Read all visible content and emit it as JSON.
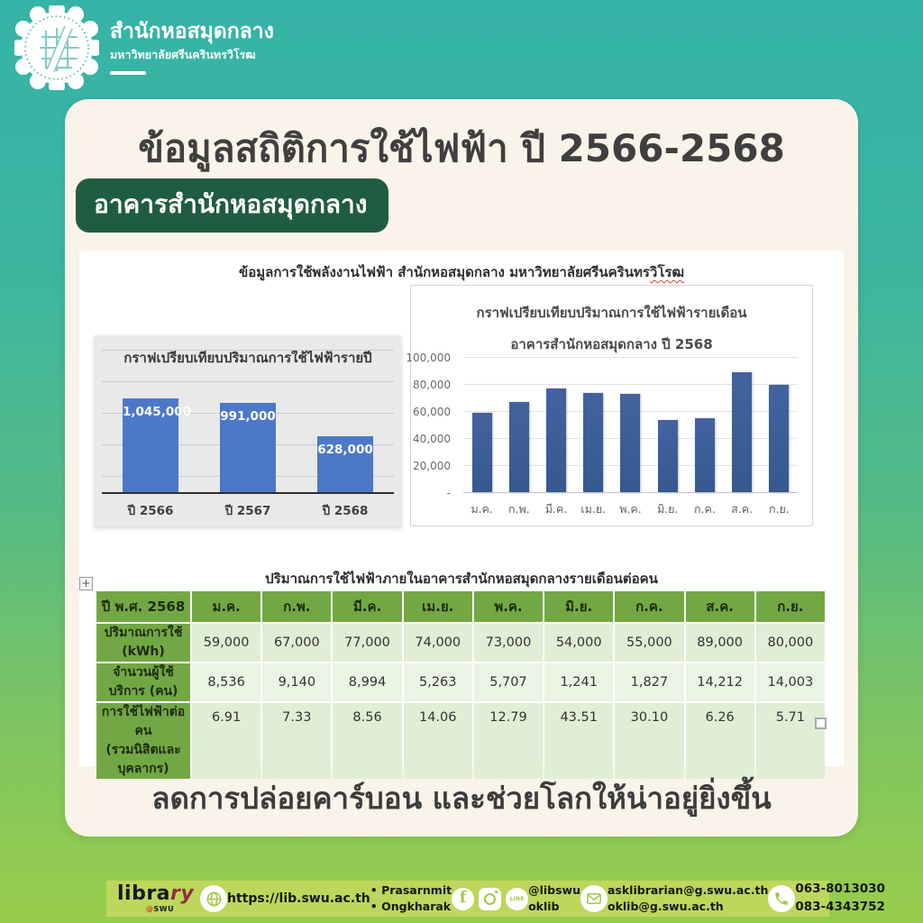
{
  "header": {
    "org_name": "สำนักหอสมุดกลาง",
    "org_sub": "มหาวิทยาลัยศรีนครินทรวิโรฒ"
  },
  "card": {
    "title": "ข้อมูลสถิติการใช้ไฟฟ้า ปี 2566-2568",
    "badge": "อาคารสำนักหอสมุดกลาง",
    "bottom_note": "ลดการปล่อยคาร์บอน และช่วยโลกให้น่าอยู่ยิ่งขึ้น"
  },
  "panel": {
    "title_prefix": "ข้อมูลการใช้พลังงานไฟฟ้า สำนักหอสมุดกลาง มหาวิทยาลัยศรีนครินทร",
    "title_spellcheck": "วิโรฒ"
  },
  "chart_data": [
    {
      "type": "bar",
      "title": "กราฟเปรียบเทียบปริมาณการใช้ไฟฟ้ารายปี",
      "categories": [
        "ปี 2566",
        "ปี 2567",
        "ปี 2568"
      ],
      "values": [
        1045000,
        991000,
        628000
      ],
      "value_labels": [
        "1,045,000",
        "991,000",
        "628,000"
      ],
      "ylim": [
        0,
        1200000
      ],
      "grid": true,
      "legend": "none",
      "bar_color": "#4d78c8",
      "background": "#e9e9e9"
    },
    {
      "type": "bar",
      "title": "กราฟเปรียบเทียบปริมาณการใช้ไฟฟ้ารายเดือน",
      "subtitle": "อาคารสำนักหอสมุดกลาง ปี 2568",
      "categories": [
        "ม.ค.",
        "ก.พ.",
        "มี.ค.",
        "เม.ย.",
        "พ.ค.",
        "มิ.ย.",
        "ก.ค.",
        "ส.ค.",
        "ก.ย."
      ],
      "values": [
        59000,
        67000,
        77000,
        74000,
        73000,
        54000,
        55000,
        89000,
        80000
      ],
      "ytick_labels": [
        "100,000",
        "80,000",
        "60,000",
        "40,000",
        "20,000",
        "-"
      ],
      "ylim": [
        0,
        100000
      ],
      "grid": true,
      "legend": "none",
      "bar_color": "#3a5f9f",
      "background": "#ffffff"
    }
  ],
  "table": {
    "title": "ปริมาณการใช้ไฟฟ้าภายในอาคารสำนักหอสมุดกลางรายเดือนต่อคน",
    "columns": [
      "ปี พ.ศ. 2568",
      "ม.ค.",
      "ก.พ.",
      "มี.ค.",
      "เม.ย.",
      "พ.ค.",
      "มิ.ย.",
      "ก.ค.",
      "ส.ค.",
      "ก.ย."
    ],
    "rows": [
      {
        "label": "ปริมาณการใช้ (kWh)",
        "label2": "",
        "values": [
          "59,000",
          "67,000",
          "77,000",
          "74,000",
          "73,000",
          "54,000",
          "55,000",
          "89,000",
          "80,000"
        ]
      },
      {
        "label": "จำนวนผู้ใช้บริการ (คน)",
        "label2": "",
        "values": [
          "8,536",
          "9,140",
          "8,994",
          "5,263",
          "5,707",
          "1,241",
          "1,827",
          "14,212",
          "14,003"
        ]
      },
      {
        "label": "การใช้ไฟฟ้าต่อคน",
        "label2": "(รวมนิสิตและบุคลากร)",
        "values": [
          "6.91",
          "7.33",
          "8.56",
          "14.06",
          "12.79",
          "43.51",
          "30.10",
          "6.26",
          "5.71"
        ]
      }
    ],
    "move_handle_glyph": "+"
  },
  "footer": {
    "logo": {
      "part1": "libra",
      "part2": "ry",
      "at": "@",
      "swu": "SWU"
    },
    "url": "https://lib.swu.ac.th",
    "campuses": [
      "• Prasarnmit",
      "• Ongkharak"
    ],
    "social_handles": [
      "@libswu",
      "oklib"
    ],
    "line_label": "LINE",
    "emails": [
      "asklibrarian@g.swu.ac.th",
      "oklib@g.swu.ac.th"
    ],
    "phones": [
      "063-8013030",
      "083-4343752"
    ]
  },
  "colors": {
    "background_top": "#35b3a7",
    "background_bottom": "#97cc4d",
    "card": "#faf3e9",
    "badge_green": "#1f5c41",
    "yearly_bar_blue": "#4d78c8",
    "monthly_bar_blue": "#3a5f9f",
    "table_header_green": "#72a843",
    "table_cell_light": "#e0eed6",
    "table_cell_lighter": "#eaf4e3",
    "footer_bar": "#bdd75c"
  }
}
